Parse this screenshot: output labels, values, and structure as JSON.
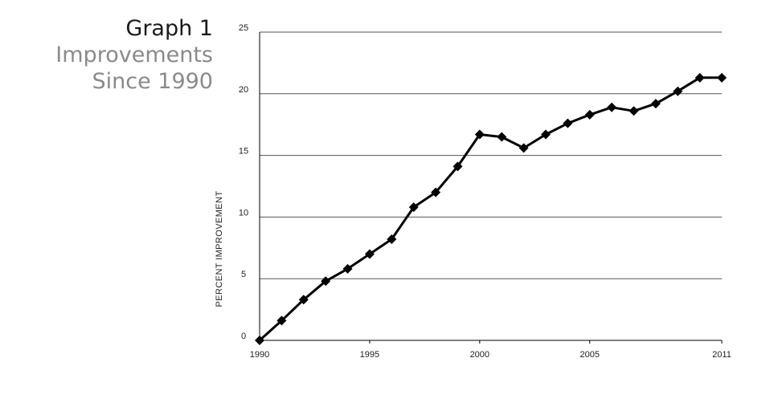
{
  "chart_data": {
    "type": "line",
    "title": "Graph 1",
    "subtitle": [
      "Improvements",
      "Since 1990"
    ],
    "xlabel": "",
    "ylabel": "PERCENT IMPROVEMENT",
    "xlim": [
      1990,
      2011
    ],
    "ylim": [
      0,
      25
    ],
    "x_ticks": [
      1990,
      1995,
      2000,
      2005,
      2011
    ],
    "y_ticks": [
      0,
      5,
      10,
      15,
      20,
      25
    ],
    "grid": "horizontal",
    "marker": "diamond",
    "line_color": "#000000",
    "series": [
      {
        "x": [
          1990,
          1991,
          1992,
          1993,
          1994,
          1995,
          1996,
          1997,
          1998,
          1999,
          2000,
          2001,
          2002,
          2003,
          2004,
          2005,
          2006,
          2007,
          2008,
          2009,
          2010,
          2011
        ],
        "values": [
          0.0,
          1.6,
          3.3,
          4.8,
          5.8,
          7.0,
          8.2,
          10.8,
          12.0,
          14.1,
          16.7,
          16.5,
          15.6,
          16.7,
          17.6,
          18.3,
          18.9,
          18.6,
          19.2,
          20.2,
          21.3,
          21.3
        ]
      }
    ]
  }
}
